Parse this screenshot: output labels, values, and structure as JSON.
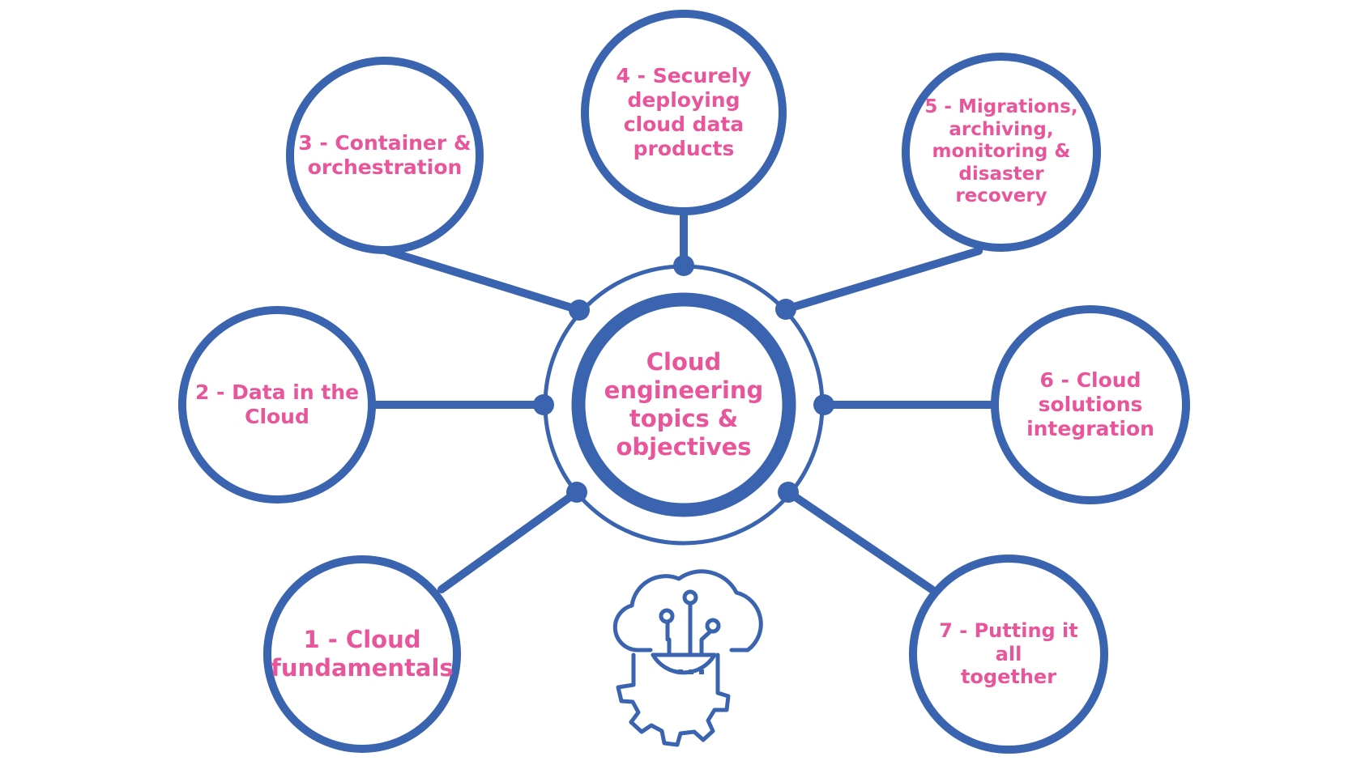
{
  "center": {
    "label_lines": [
      "Cloud",
      "engineering",
      "topics &",
      "objectives"
    ]
  },
  "topics": [
    {
      "id": "1",
      "label_lines": [
        "1 - Cloud",
        "fundamentals"
      ]
    },
    {
      "id": "2",
      "label_lines": [
        "2 - Data in the",
        "Cloud"
      ]
    },
    {
      "id": "3",
      "label_lines": [
        "3 - Container &",
        "orchestration"
      ]
    },
    {
      "id": "4",
      "label_lines": [
        "4 - Securely",
        "deploying",
        "cloud data",
        "products"
      ]
    },
    {
      "id": "5",
      "label_lines": [
        "5 - Migrations,",
        "archiving,",
        "monitoring &",
        "disaster recovery"
      ]
    },
    {
      "id": "6",
      "label_lines": [
        "6 - Cloud",
        "solutions",
        "integration"
      ]
    },
    {
      "id": "7",
      "label_lines": [
        "7 - Putting it all",
        "together"
      ]
    }
  ],
  "icons": {
    "bottom": "cloud-gear-icon"
  },
  "colors": {
    "stroke": "#3a63b0",
    "text": "#e8559a",
    "background": "#ffffff"
  }
}
